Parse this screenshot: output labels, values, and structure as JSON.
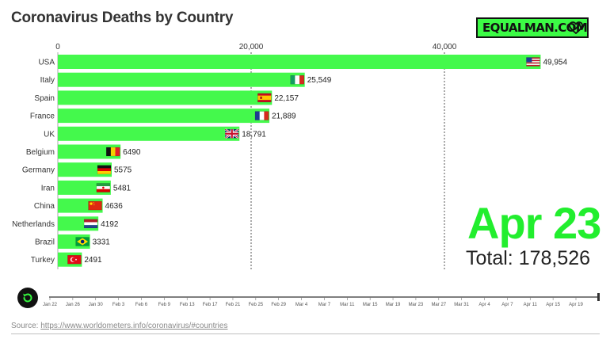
{
  "header": {
    "title": "Coronavirus Deaths by Country",
    "logo_text": "EQUALMAN.COM",
    "logo_icon": "heart-check-icon"
  },
  "chart_data": {
    "type": "bar",
    "orientation": "horizontal",
    "title": "Coronavirus Deaths by Country",
    "xlabel": "",
    "ylabel": "",
    "xlim": [
      0,
      50500
    ],
    "x_ticks": [
      0,
      20000,
      40000
    ],
    "x_tick_labels": [
      "0",
      "20,000",
      "40,000"
    ],
    "grid": true,
    "categories": [
      "USA",
      "Italy",
      "Spain",
      "France",
      "UK",
      "Belgium",
      "Germany",
      "Iran",
      "China",
      "Netherlands",
      "Brazil",
      "Turkey"
    ],
    "values": [
      49954,
      25549,
      22157,
      21889,
      18791,
      6490,
      5575,
      5481,
      4636,
      4192,
      3331,
      2491
    ],
    "value_labels": [
      "49,954",
      "25,549",
      "22,157",
      "21,889",
      "18,791",
      "6490",
      "5575",
      "5481",
      "4636",
      "4192",
      "3331",
      "2491"
    ],
    "flags": [
      "us-flag-icon",
      "italy-flag-icon",
      "spain-flag-icon",
      "france-flag-icon",
      "uk-flag-icon",
      "belgium-flag-icon",
      "germany-flag-icon",
      "iran-flag-icon",
      "china-flag-icon",
      "netherlands-flag-icon",
      "brazil-flag-icon",
      "turkey-flag-icon"
    ],
    "bar_color": "#44f94c"
  },
  "overlay": {
    "date": "Apr 23",
    "total": "Total: 178,526",
    "date_color": "#22ee2e"
  },
  "timeline": {
    "labels": [
      "Jan 22",
      "Jan 26",
      "Jan 30",
      "Feb 3",
      "Feb 6",
      "Feb 9",
      "Feb 13",
      "Feb 17",
      "Feb 21",
      "Feb 25",
      "Feb 29",
      "Mar 4",
      "Mar 7",
      "Mar 11",
      "Mar 15",
      "Mar 19",
      "Mar 23",
      "Mar 27",
      "Mar 31",
      "Apr 4",
      "Apr 7",
      "Apr 11",
      "Apr 15",
      "Apr 19"
    ],
    "replay_icon": "replay-icon",
    "progress": 1.0
  },
  "footer": {
    "source_prefix": "Source: ",
    "source_url": "https://www.worldometers.info/coronavirus/#countries"
  }
}
